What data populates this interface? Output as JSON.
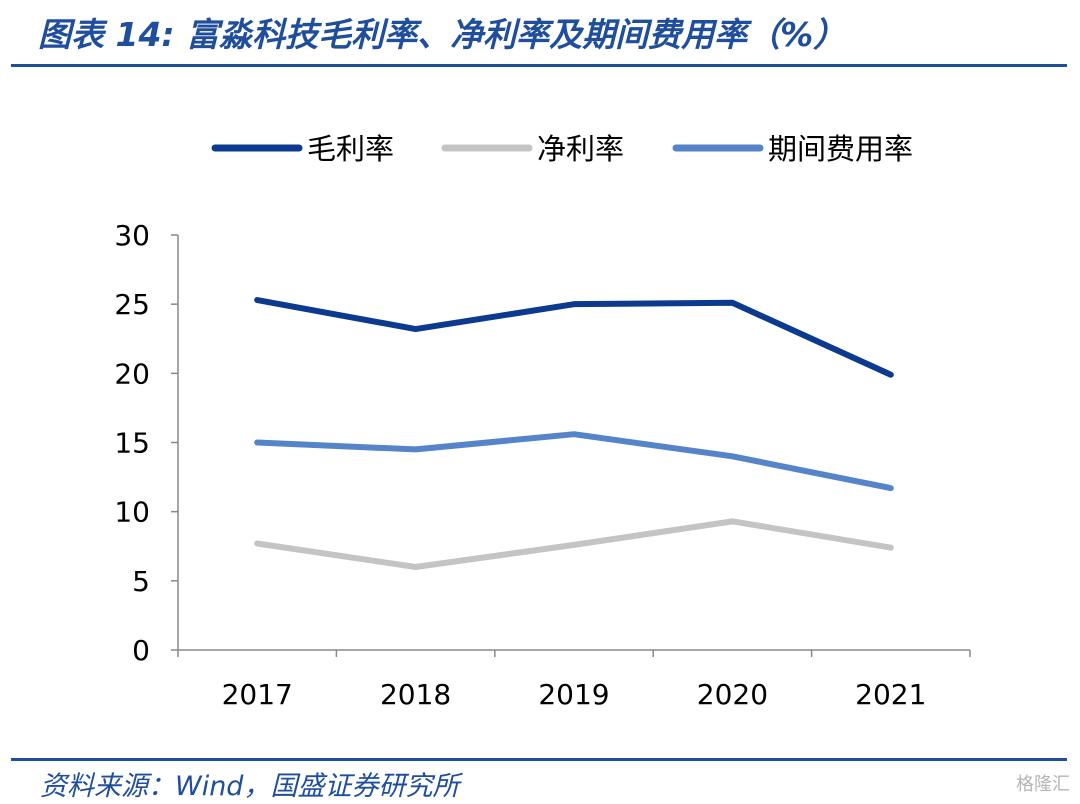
{
  "title": "图表 14:  富淼科技毛利率、净利率及期间费用率（%）",
  "source": "资料来源：Wind，国盛证券研究所",
  "watermark": "格隆汇",
  "chart_data": {
    "type": "line",
    "x": [
      "2017",
      "2018",
      "2019",
      "2020",
      "2021"
    ],
    "series": [
      {
        "name": "毛利率",
        "color": "#0b3a8f",
        "values": [
          25.3,
          23.2,
          25.0,
          25.1,
          19.9
        ]
      },
      {
        "name": "净利率",
        "color": "#c4c4c4",
        "values": [
          7.7,
          6.0,
          7.6,
          9.3,
          7.4
        ]
      },
      {
        "name": "期间费用率",
        "color": "#5585c8",
        "values": [
          15.0,
          14.5,
          15.6,
          14.0,
          11.7
        ]
      }
    ],
    "ylim": [
      0,
      30
    ],
    "yticks": [
      0,
      5,
      10,
      15,
      20,
      25,
      30
    ],
    "legend": "top-center",
    "grid": false
  }
}
